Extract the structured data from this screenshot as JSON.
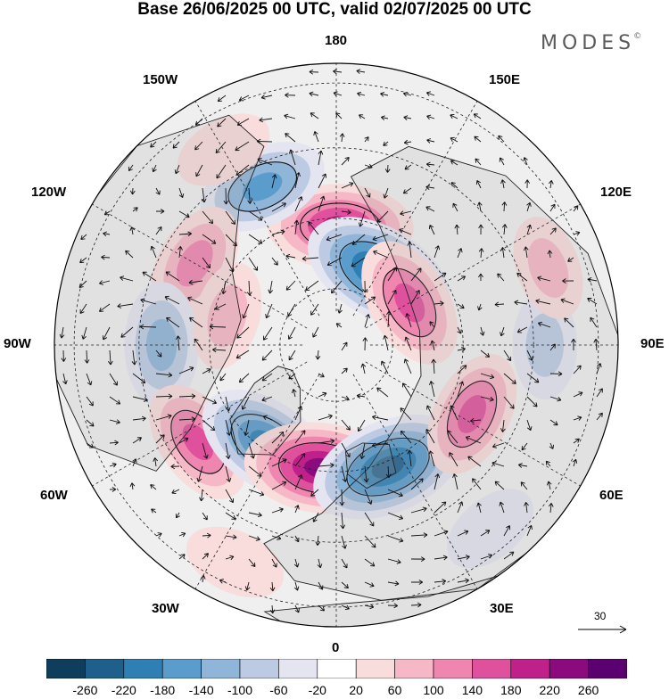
{
  "title": "Base 26/06/2025 00 UTC, valid 02/07/2025 00 UTC",
  "brand": "MODES",
  "brand_mark": "©",
  "longitude_labels": {
    "top": "180",
    "bottom": "0",
    "left": "90W",
    "right": "90E",
    "upper_left_1": "150W",
    "upper_left_2": "120W",
    "upper_right_1": "150E",
    "upper_right_2": "120E",
    "lower_left_1": "60W",
    "lower_left_2": "30W",
    "lower_right_1": "60E",
    "lower_right_2": "30E"
  },
  "reference_vector": {
    "value": "30"
  },
  "colorbar": {
    "labels": [
      "-260",
      "-220",
      "-180",
      "-140",
      "-100",
      "-60",
      "-20",
      "20",
      "60",
      "100",
      "140",
      "180",
      "220",
      "260"
    ],
    "colors": [
      "#0f3d5c",
      "#1f5f8b",
      "#2f7fb5",
      "#5a9ccc",
      "#8fb5d9",
      "#bccbe3",
      "#e4e5f1",
      "#ffffff",
      "#f9dcdc",
      "#f6b8c6",
      "#ef86b0",
      "#e0519d",
      "#c0208a",
      "#8b0a7e",
      "#5a0070"
    ]
  },
  "anomaly_centers": [
    {
      "lon_deg": 178,
      "colat": 0.42,
      "value": 200
    },
    {
      "lon_deg": 150,
      "colat": 0.3,
      "value": -230
    },
    {
      "lon_deg": 120,
      "colat": 0.3,
      "value": 160
    },
    {
      "lon_deg": 205,
      "colat": 0.62,
      "value": -150
    },
    {
      "lon_deg": 240,
      "colat": 0.58,
      "value": 120
    },
    {
      "lon_deg": 270,
      "colat": 0.62,
      "value": -130
    },
    {
      "lon_deg": 255,
      "colat": 0.4,
      "value": 70
    },
    {
      "lon_deg": 305,
      "colat": 0.6,
      "value": 140
    },
    {
      "lon_deg": 325,
      "colat": 0.43,
      "value": -200
    },
    {
      "lon_deg": 353,
      "colat": 0.44,
      "value": 230
    },
    {
      "lon_deg": 23,
      "colat": 0.47,
      "value": -240
    },
    {
      "lon_deg": 63,
      "colat": 0.54,
      "value": 140
    },
    {
      "lon_deg": 90,
      "colat": 0.74,
      "value": -70
    },
    {
      "lon_deg": 110,
      "colat": 0.8,
      "value": 60
    },
    {
      "lon_deg": 40,
      "colat": 0.85,
      "value": -40
    },
    {
      "lon_deg": 210,
      "colat": 0.8,
      "value": 40
    },
    {
      "lon_deg": 335,
      "colat": 0.85,
      "value": 50
    }
  ]
}
